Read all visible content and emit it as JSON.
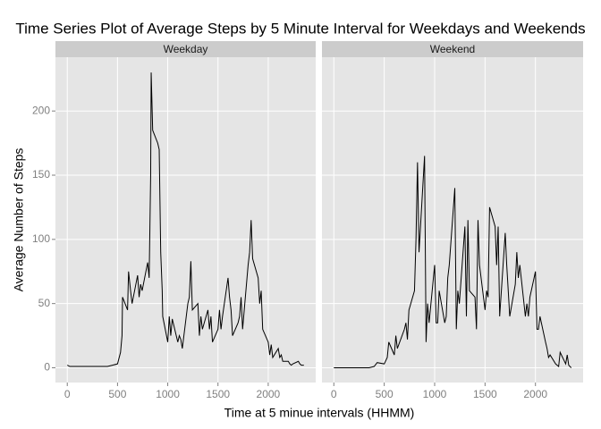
{
  "title": "Time Series Plot of Average Steps by 5 Minute Interval for Weekdays and Weekends",
  "x_label": "Time at 5 minue intervals (HHMM)",
  "y_label": "Average Number of Steps",
  "chart_data": [
    {
      "type": "line",
      "panel": "Weekday",
      "color": "#000000",
      "grid": true,
      "xlim": [
        -117.75,
        2472.75
      ],
      "ylim": [
        -11.5,
        241.9
      ],
      "xticks": [
        0,
        500,
        1000,
        1500,
        2000
      ],
      "yticks": [
        0,
        50,
        100,
        150,
        200
      ],
      "x": [
        0,
        25,
        50,
        100,
        150,
        200,
        250,
        300,
        350,
        400,
        450,
        500,
        530,
        545,
        550,
        600,
        610,
        630,
        645,
        700,
        715,
        730,
        745,
        800,
        815,
        830,
        835,
        845,
        850,
        900,
        915,
        930,
        945,
        950,
        1000,
        1015,
        1030,
        1045,
        1100,
        1115,
        1130,
        1145,
        1200,
        1215,
        1230,
        1245,
        1300,
        1315,
        1330,
        1345,
        1400,
        1415,
        1430,
        1445,
        1500,
        1515,
        1530,
        1545,
        1600,
        1615,
        1630,
        1645,
        1700,
        1715,
        1730,
        1745,
        1800,
        1815,
        1830,
        1845,
        1900,
        1915,
        1930,
        1945,
        2000,
        2015,
        2030,
        2045,
        2100,
        2115,
        2130,
        2145,
        2200,
        2215,
        2230,
        2245,
        2300,
        2315,
        2330,
        2355
      ],
      "values": [
        2,
        1,
        1,
        1,
        1,
        1,
        1,
        1,
        1,
        1,
        2,
        3,
        12,
        25,
        55,
        45,
        75,
        60,
        50,
        72,
        55,
        65,
        60,
        82,
        70,
        150,
        230,
        200,
        185,
        175,
        170,
        90,
        60,
        40,
        20,
        40,
        25,
        38,
        20,
        25,
        22,
        15,
        50,
        55,
        83,
        45,
        50,
        25,
        40,
        30,
        45,
        30,
        40,
        20,
        30,
        45,
        30,
        40,
        70,
        55,
        45,
        25,
        35,
        40,
        55,
        30,
        80,
        90,
        115,
        85,
        70,
        50,
        60,
        30,
        20,
        10,
        18,
        8,
        15,
        8,
        10,
        5,
        5,
        3,
        2,
        3,
        5,
        3,
        2,
        2
      ]
    },
    {
      "type": "line",
      "panel": "Weekend",
      "color": "#000000",
      "grid": true,
      "xlim": [
        -117.75,
        2472.75
      ],
      "ylim": [
        -11.5,
        241.9
      ],
      "xticks": [
        0,
        500,
        1000,
        1500,
        2000
      ],
      "yticks": [
        0,
        50,
        100,
        150,
        200
      ],
      "x": [
        0,
        50,
        100,
        200,
        300,
        350,
        400,
        430,
        500,
        530,
        545,
        600,
        615,
        630,
        700,
        715,
        730,
        745,
        800,
        815,
        830,
        845,
        900,
        915,
        930,
        945,
        1000,
        1015,
        1030,
        1045,
        1100,
        1115,
        1130,
        1145,
        1200,
        1215,
        1230,
        1245,
        1300,
        1315,
        1330,
        1345,
        1400,
        1415,
        1430,
        1445,
        1500,
        1515,
        1530,
        1545,
        1600,
        1615,
        1630,
        1645,
        1700,
        1715,
        1730,
        1745,
        1800,
        1815,
        1830,
        1845,
        1900,
        1915,
        1930,
        1945,
        2000,
        2015,
        2030,
        2045,
        2100,
        2115,
        2130,
        2145,
        2200,
        2215,
        2230,
        2245,
        2300,
        2315,
        2330,
        2355
      ],
      "values": [
        0,
        0,
        0,
        0,
        0,
        0,
        1,
        4,
        3,
        8,
        20,
        10,
        25,
        15,
        30,
        35,
        22,
        45,
        60,
        100,
        160,
        90,
        165,
        20,
        50,
        35,
        80,
        35,
        35,
        60,
        35,
        40,
        70,
        80,
        140,
        30,
        60,
        50,
        110,
        40,
        115,
        60,
        55,
        30,
        115,
        80,
        45,
        60,
        55,
        125,
        110,
        80,
        110,
        40,
        105,
        80,
        60,
        40,
        65,
        90,
        70,
        80,
        40,
        50,
        40,
        55,
        75,
        30,
        30,
        40,
        20,
        15,
        8,
        10,
        3,
        2,
        1,
        12,
        3,
        10,
        2,
        0
      ]
    }
  ]
}
